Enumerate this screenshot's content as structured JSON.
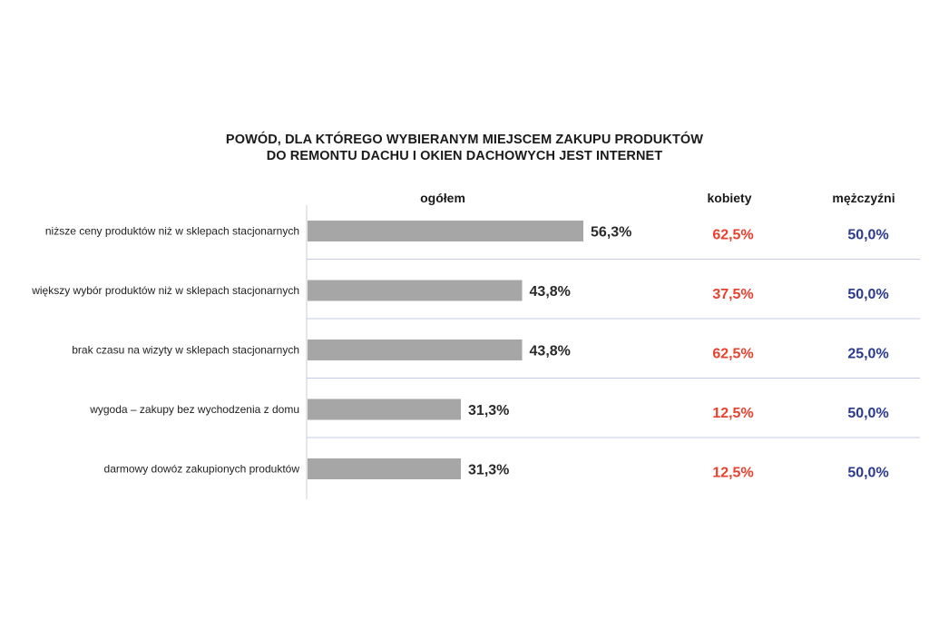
{
  "chart_data": {
    "type": "bar",
    "orientation": "horizontal",
    "title": "POWÓD, DLA KTÓREGO WYBIERANYM MIEJSCEM ZAKUPU PRODUKTÓW",
    "subtitle": "DO REMONTU DACHU I OKIEN DACHOWYCH JEST INTERNET",
    "categories": [
      "niższe ceny produktów niż w sklepach stacjonarnych",
      "większy wybór produktów niż w sklepach stacjonarnych",
      "brak czasu na wizyty w sklepach stacjonarnych",
      "wygoda – zakupy bez wychodzenia z domu",
      "darmowy dowóz zakupionych produktów"
    ],
    "column_headers": {
      "total": "ogółem",
      "women": "kobiety",
      "men": "mężczyźni"
    },
    "series": [
      {
        "name": "ogółem",
        "values": [
          56.3,
          43.8,
          43.8,
          31.3,
          31.3
        ],
        "labels": [
          "56,3%",
          "43,8%",
          "43,8%",
          "31,3%",
          "31,3%"
        ]
      },
      {
        "name": "kobiety",
        "values": [
          62.5,
          37.5,
          62.5,
          12.5,
          12.5
        ],
        "labels": [
          "62,5%",
          "37,5%",
          "62,5%",
          "12,5%",
          "12,5%"
        ]
      },
      {
        "name": "mężczyźni",
        "values": [
          50.0,
          50.0,
          25.0,
          50.0,
          50.0
        ],
        "labels": [
          "50,0%",
          "50,0%",
          "25,0%",
          "50,0%",
          "50,0%"
        ]
      }
    ],
    "xlim": [
      0,
      100
    ],
    "grid": false,
    "legend": "none",
    "colors": {
      "bar": "#a6a6a6",
      "women": "#e8412c",
      "men": "#2b3a8c",
      "axis": "#cccccc",
      "separator": "#c5cbe6"
    }
  }
}
